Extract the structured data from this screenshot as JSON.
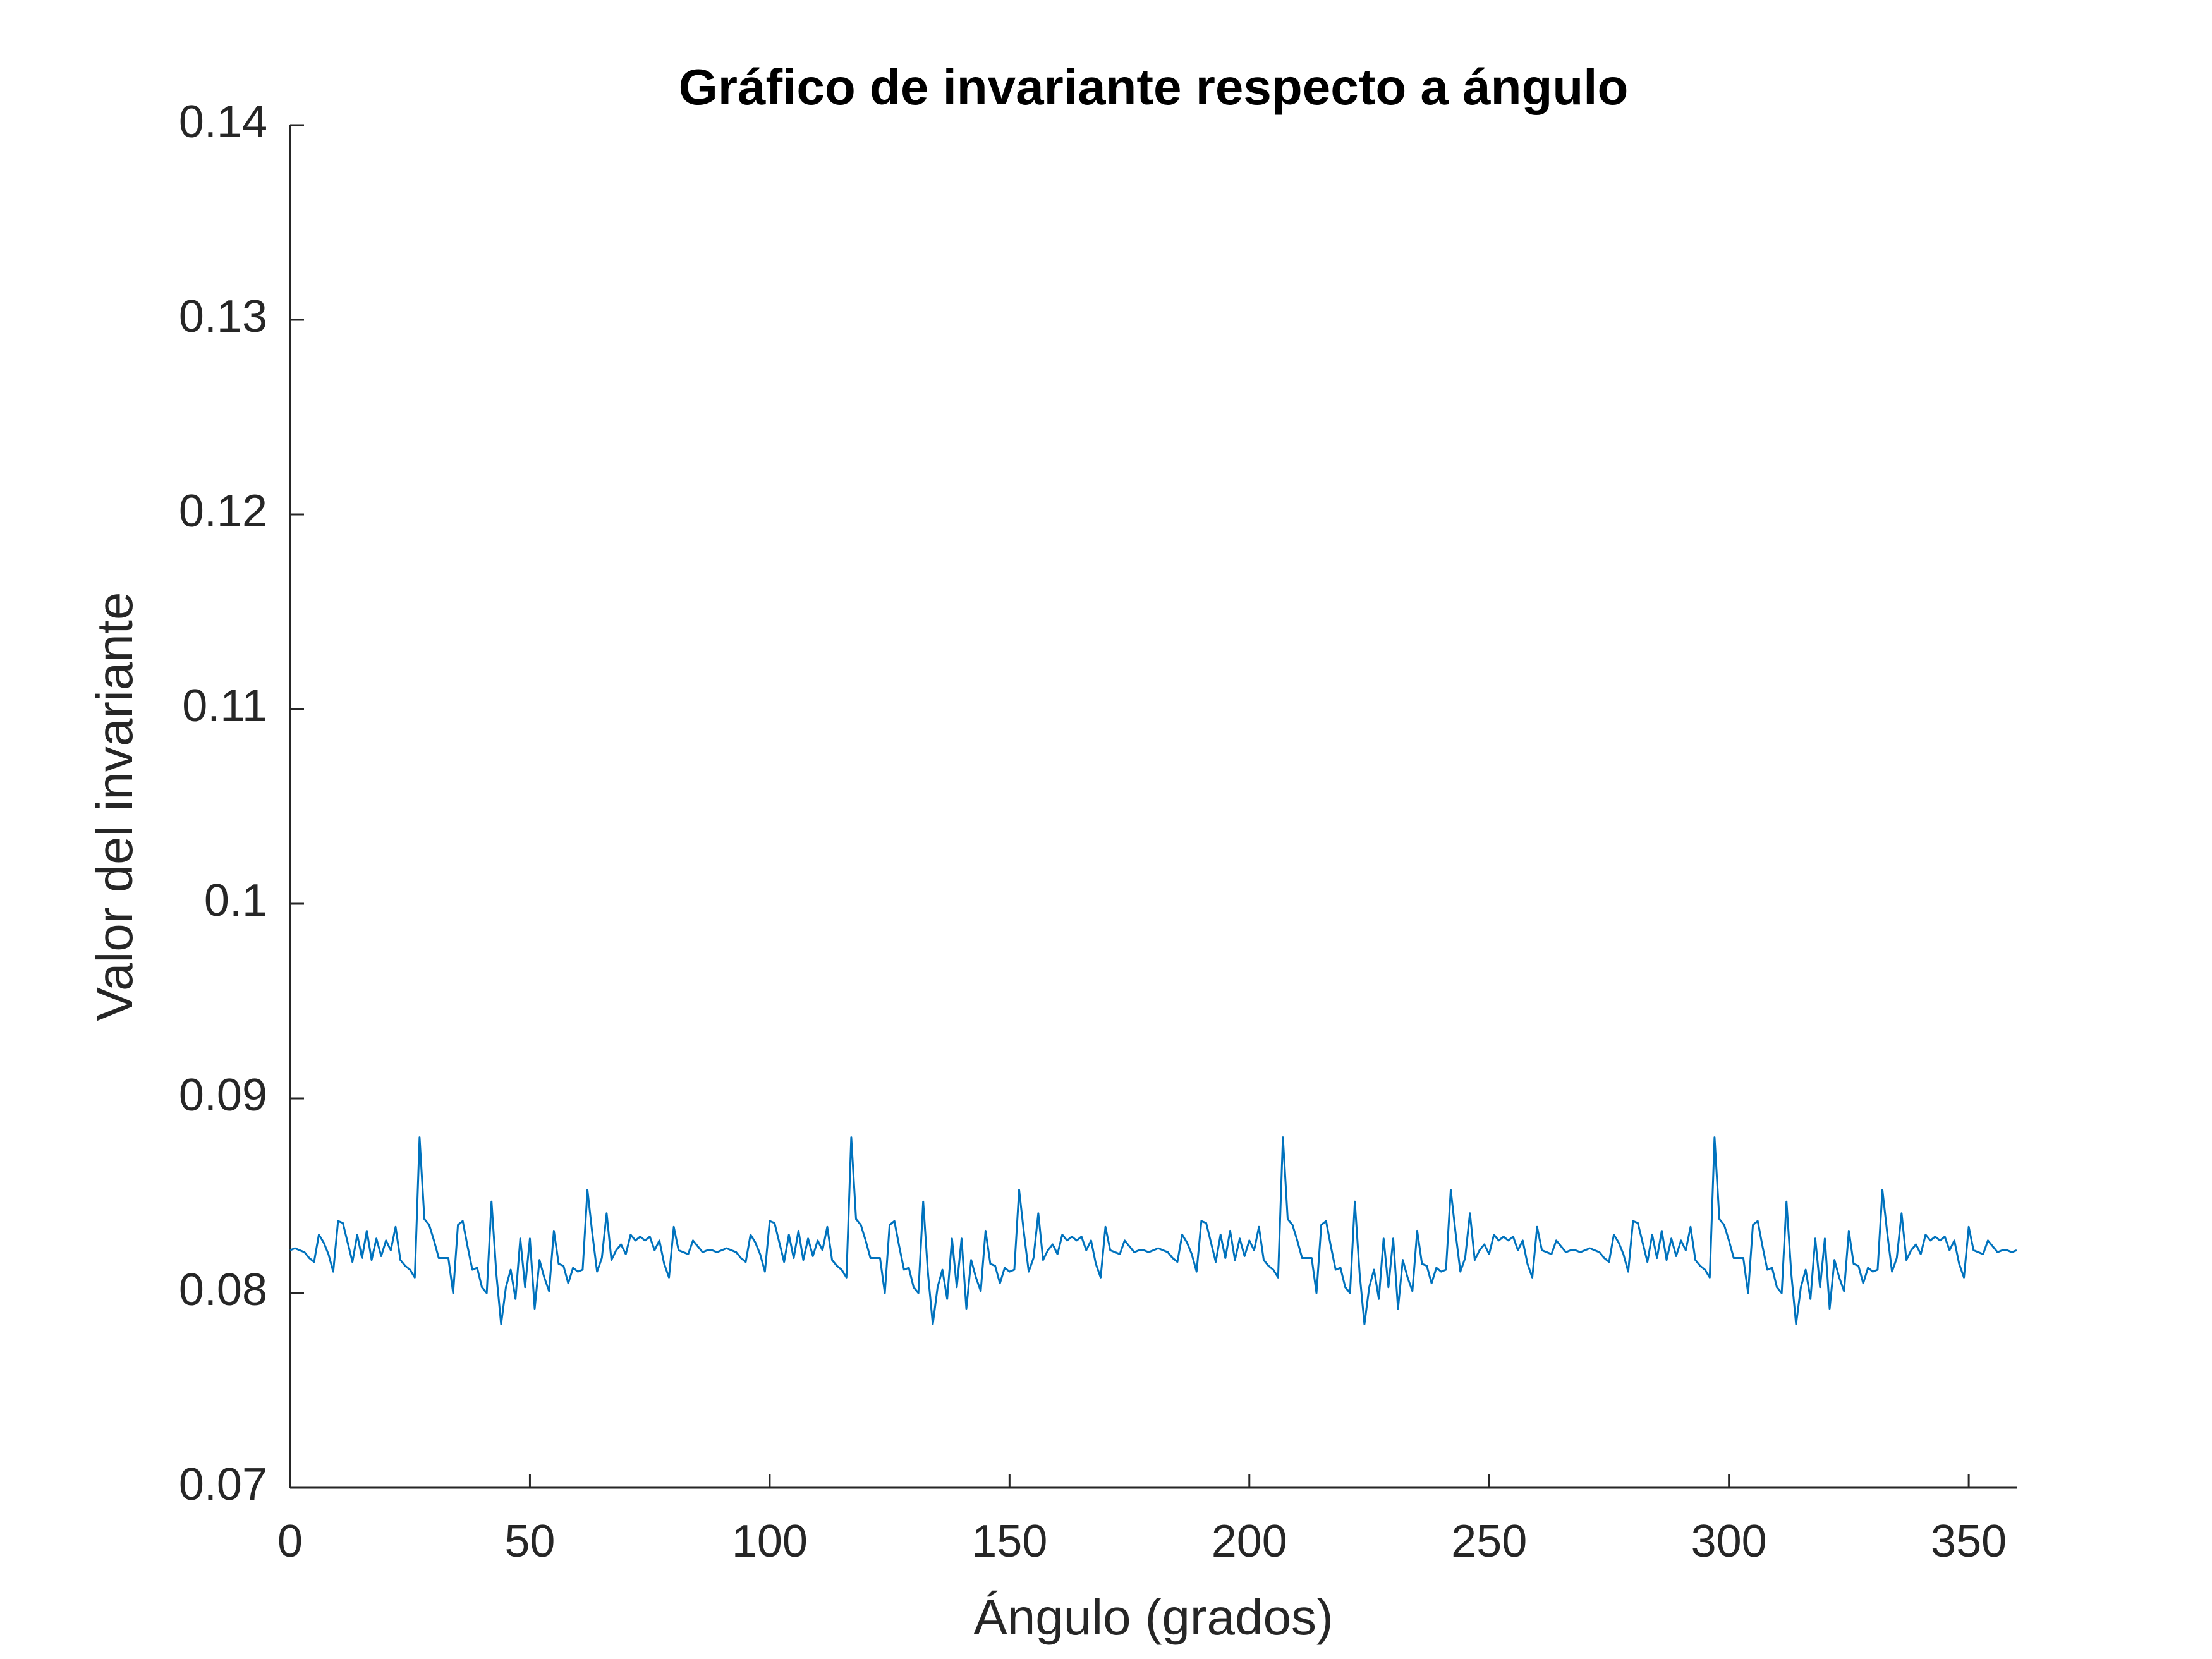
{
  "chart_data": {
    "type": "line",
    "title": "Gráfico de invariante respecto a ángulo",
    "xlabel": "Ángulo (grados)",
    "ylabel": "Valor del invariante",
    "color": "#0072bd",
    "xlim": [
      0,
      360
    ],
    "ylim": [
      0.07,
      0.14
    ],
    "xticks": [
      0,
      50,
      100,
      150,
      200,
      250,
      300,
      350
    ],
    "yticks": [
      0.07,
      0.08,
      0.09,
      0.1,
      0.11,
      0.12,
      0.13,
      0.14
    ],
    "x": [
      0,
      1,
      2,
      3,
      4,
      5,
      6,
      7,
      8,
      9,
      10,
      11,
      12,
      13,
      14,
      15,
      16,
      17,
      18,
      19,
      20,
      21,
      22,
      23,
      24,
      25,
      26,
      27,
      28,
      29,
      30,
      31,
      32,
      33,
      34,
      35,
      36,
      37,
      38,
      39,
      40,
      41,
      42,
      43,
      44,
      45,
      46,
      47,
      48,
      49,
      50,
      51,
      52,
      53,
      54,
      55,
      56,
      57,
      58,
      59,
      60,
      61,
      62,
      63,
      64,
      65,
      66,
      67,
      68,
      69,
      70,
      71,
      72,
      73,
      74,
      75,
      76,
      77,
      78,
      79,
      80,
      81,
      82,
      83,
      84,
      85,
      86,
      87,
      88,
      89,
      90,
      91,
      92,
      93,
      94,
      95,
      96,
      97,
      98,
      99,
      100,
      101,
      102,
      103,
      104,
      105,
      106,
      107,
      108,
      109,
      110,
      111,
      112,
      113,
      114,
      115,
      116,
      117,
      118,
      119,
      120,
      121,
      122,
      123,
      124,
      125,
      126,
      127,
      128,
      129,
      130,
      131,
      132,
      133,
      134,
      135,
      136,
      137,
      138,
      139,
      140,
      141,
      142,
      143,
      144,
      145,
      146,
      147,
      148,
      149,
      150,
      151,
      152,
      153,
      154,
      155,
      156,
      157,
      158,
      159,
      160,
      161,
      162,
      163,
      164,
      165,
      166,
      167,
      168,
      169,
      170,
      171,
      172,
      173,
      174,
      175,
      176,
      177,
      178,
      179,
      180,
      181,
      182,
      183,
      184,
      185,
      186,
      187,
      188,
      189,
      190,
      191,
      192,
      193,
      194,
      195,
      196,
      197,
      198,
      199,
      200,
      201,
      202,
      203,
      204,
      205,
      206,
      207,
      208,
      209,
      210,
      211,
      212,
      213,
      214,
      215,
      216,
      217,
      218,
      219,
      220,
      221,
      222,
      223,
      224,
      225,
      226,
      227,
      228,
      229,
      230,
      231,
      232,
      233,
      234,
      235,
      236,
      237,
      238,
      239,
      240,
      241,
      242,
      243,
      244,
      245,
      246,
      247,
      248,
      249,
      250,
      251,
      252,
      253,
      254,
      255,
      256,
      257,
      258,
      259,
      260,
      261,
      262,
      263,
      264,
      265,
      266,
      267,
      268,
      269,
      270,
      271,
      272,
      273,
      274,
      275,
      276,
      277,
      278,
      279,
      280,
      281,
      282,
      283,
      284,
      285,
      286,
      287,
      288,
      289,
      290,
      291,
      292,
      293,
      294,
      295,
      296,
      297,
      298,
      299,
      300,
      301,
      302,
      303,
      304,
      305,
      306,
      307,
      308,
      309,
      310,
      311,
      312,
      313,
      314,
      315,
      316,
      317,
      318,
      319,
      320,
      321,
      322,
      323,
      324,
      325,
      326,
      327,
      328,
      329,
      330,
      331,
      332,
      333,
      334,
      335,
      336,
      337,
      338,
      339,
      340,
      341,
      342,
      343,
      344,
      345,
      346,
      347,
      348,
      349,
      350,
      351,
      352,
      353,
      354,
      355,
      356,
      357,
      358,
      359,
      360
    ],
    "values": [
      0.0822,
      0.0823,
      0.0822,
      0.0821,
      0.0818,
      0.0816,
      0.083,
      0.0826,
      0.082,
      0.0811,
      0.0837,
      0.0836,
      0.0826,
      0.0816,
      0.083,
      0.0818,
      0.0832,
      0.0817,
      0.0828,
      0.0819,
      0.0827,
      0.0822,
      0.0834,
      0.0817,
      0.0814,
      0.0812,
      0.0808,
      0.088,
      0.0838,
      0.0835,
      0.0827,
      0.0818,
      0.0818,
      0.0818,
      0.08,
      0.0835,
      0.0837,
      0.0824,
      0.0812,
      0.0813,
      0.0803,
      0.08,
      0.0847,
      0.081,
      0.0784,
      0.0803,
      0.0812,
      0.0797,
      0.0828,
      0.0803,
      0.0828,
      0.0792,
      0.0817,
      0.0808,
      0.0801,
      0.0832,
      0.0815,
      0.0814,
      0.0805,
      0.0813,
      0.0811,
      0.0812,
      0.0853,
      0.0831,
      0.0811,
      0.0818,
      0.0841,
      0.0817,
      0.0822,
      0.0825,
      0.082,
      0.083,
      0.0827,
      0.0829,
      0.0827,
      0.0829,
      0.0822,
      0.0827,
      0.0815,
      0.0808,
      0.0834,
      0.0822,
      0.0821,
      0.082,
      0.0827,
      0.0824,
      0.0821,
      0.0822,
      0.0822,
      0.0821,
      0.0822,
      0.0823,
      0.0822,
      0.0821,
      0.0818,
      0.0816,
      0.083,
      0.0826,
      0.082,
      0.0811,
      0.0837,
      0.0836,
      0.0826,
      0.0816,
      0.083,
      0.0818,
      0.0832,
      0.0817,
      0.0828,
      0.0819,
      0.0827,
      0.0822,
      0.0834,
      0.0817,
      0.0814,
      0.0812,
      0.0808,
      0.088,
      0.0838,
      0.0835,
      0.0827,
      0.0818,
      0.0818,
      0.0818,
      0.08,
      0.0835,
      0.0837,
      0.0824,
      0.0812,
      0.0813,
      0.0803,
      0.08,
      0.0847,
      0.081,
      0.0784,
      0.0803,
      0.0812,
      0.0797,
      0.0828,
      0.0803,
      0.0828,
      0.0792,
      0.0817,
      0.0808,
      0.0801,
      0.0832,
      0.0815,
      0.0814,
      0.0805,
      0.0813,
      0.0811,
      0.0812,
      0.0853,
      0.0831,
      0.0811,
      0.0818,
      0.0841,
      0.0817,
      0.0822,
      0.0825,
      0.082,
      0.083,
      0.0827,
      0.0829,
      0.0827,
      0.0829,
      0.0822,
      0.0827,
      0.0815,
      0.0808,
      0.0834,
      0.0822,
      0.0821,
      0.082,
      0.0827,
      0.0824,
      0.0821,
      0.0822,
      0.0822,
      0.0821,
      0.0822,
      0.0823,
      0.0822,
      0.0821,
      0.0818,
      0.0816,
      0.083,
      0.0826,
      0.082,
      0.0811,
      0.0837,
      0.0836,
      0.0826,
      0.0816,
      0.083,
      0.0818,
      0.0832,
      0.0817,
      0.0828,
      0.0819,
      0.0827,
      0.0822,
      0.0834,
      0.0817,
      0.0814,
      0.0812,
      0.0808,
      0.088,
      0.0838,
      0.0835,
      0.0827,
      0.0818,
      0.0818,
      0.0818,
      0.08,
      0.0835,
      0.0837,
      0.0824,
      0.0812,
      0.0813,
      0.0803,
      0.08,
      0.0847,
      0.081,
      0.0784,
      0.0803,
      0.0812,
      0.0797,
      0.0828,
      0.0803,
      0.0828,
      0.0792,
      0.0817,
      0.0808,
      0.0801,
      0.0832,
      0.0815,
      0.0814,
      0.0805,
      0.0813,
      0.0811,
      0.0812,
      0.0853,
      0.0831,
      0.0811,
      0.0818,
      0.0841,
      0.0817,
      0.0822,
      0.0825,
      0.082,
      0.083,
      0.0827,
      0.0829,
      0.0827,
      0.0829,
      0.0822,
      0.0827,
      0.0815,
      0.0808,
      0.0834,
      0.0822,
      0.0821,
      0.082,
      0.0827,
      0.0824,
      0.0821,
      0.0822,
      0.0822,
      0.0821,
      0.0822,
      0.0823,
      0.0822,
      0.0821,
      0.0818,
      0.0816,
      0.083,
      0.0826,
      0.082,
      0.0811,
      0.0837,
      0.0836,
      0.0826,
      0.0816,
      0.083,
      0.0818,
      0.0832,
      0.0817,
      0.0828,
      0.0819,
      0.0827,
      0.0822,
      0.0834,
      0.0817,
      0.0814,
      0.0812,
      0.0808,
      0.088,
      0.0838,
      0.0835,
      0.0827,
      0.0818,
      0.0818,
      0.0818,
      0.08,
      0.0835,
      0.0837,
      0.0824,
      0.0812,
      0.0813,
      0.0803,
      0.08,
      0.0847,
      0.081,
      0.0784,
      0.0803,
      0.0812,
      0.0797,
      0.0828,
      0.0803,
      0.0828,
      0.0792,
      0.0817,
      0.0808,
      0.0801,
      0.0832,
      0.0815,
      0.0814,
      0.0805,
      0.0813,
      0.0811,
      0.0812,
      0.0853,
      0.0831,
      0.0811,
      0.0818,
      0.0841,
      0.0817,
      0.0822,
      0.0825,
      0.082,
      0.083,
      0.0827,
      0.0829,
      0.0827,
      0.0829,
      0.0822,
      0.0827,
      0.0815,
      0.0808,
      0.0834,
      0.0822,
      0.0821,
      0.082,
      0.0827,
      0.0824,
      0.0821,
      0.0822,
      0.0822,
      0.0821,
      0.0822
    ]
  }
}
